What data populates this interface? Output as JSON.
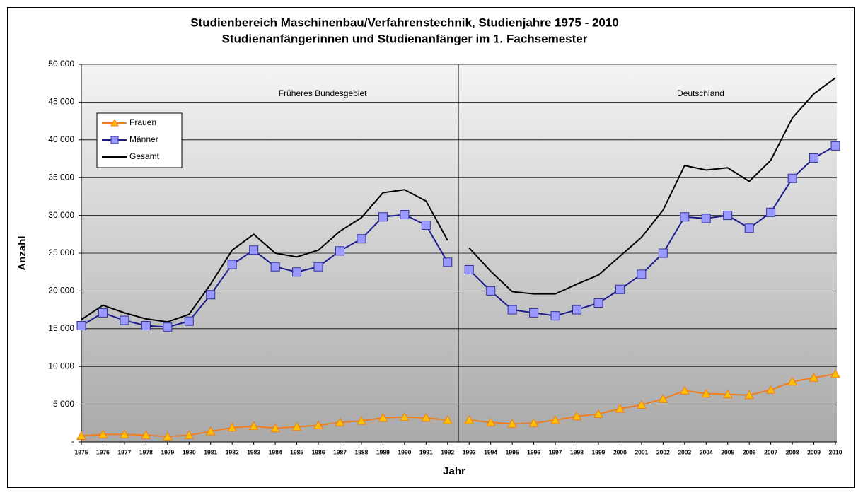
{
  "chart_data": {
    "type": "line",
    "title": "Studienbereich Maschinenbau/Verfahrenstechnik, Studienjahre 1975 - 2010",
    "subtitle": "Studienanfängerinnen  und Studienanfänger im 1. Fachsemester",
    "x_label": "Jahr",
    "y_label": "Anzahl",
    "categories": [
      "1975",
      "1976",
      "1977",
      "1978",
      "1979",
      "1980",
      "1981",
      "1982",
      "1983",
      "1984",
      "1985",
      "1986",
      "1987",
      "1988",
      "1989",
      "1990",
      "1991",
      "1992",
      "1993",
      "1994",
      "1995",
      "1996",
      "1997",
      "1998",
      "1999",
      "2000",
      "2001",
      "2002",
      "2003",
      "2004",
      "2005",
      "2006",
      "2007",
      "2008",
      "2009",
      "2010"
    ],
    "regions": [
      {
        "label": "Früheres Bundesgebiet",
        "range": [
          "1975",
          "1992"
        ]
      },
      {
        "label": "Deutschland",
        "range": [
          "1993",
          "2010"
        ]
      }
    ],
    "series": [
      {
        "name": "Frauen",
        "color": "#f07d1e",
        "marker": "triangle",
        "values": [
          800,
          1000,
          1000,
          900,
          700,
          900,
          1400,
          1900,
          2100,
          1800,
          2000,
          2200,
          2600,
          2800,
          3200,
          3300,
          3200,
          2900,
          2900,
          2600,
          2400,
          2500,
          2900,
          3400,
          3700,
          4400,
          4900,
          5700,
          6800,
          6400,
          6300,
          6200,
          6900,
          8000,
          8500,
          9000
        ]
      },
      {
        "name": "Männer",
        "color": "#1c1c8c",
        "marker": "square",
        "values": [
          15400,
          17100,
          16100,
          15400,
          15200,
          16000,
          19500,
          23500,
          25400,
          23200,
          22500,
          23200,
          25300,
          26900,
          29800,
          30100,
          28700,
          23800,
          22800,
          20000,
          17500,
          17100,
          16700,
          17500,
          18400,
          20200,
          22200,
          25000,
          29800,
          29600,
          30000,
          28300,
          30400,
          34900,
          37600,
          39200
        ]
      },
      {
        "name": "Gesamt",
        "color": "#000000",
        "marker": "none",
        "values": [
          16200,
          18100,
          17100,
          16300,
          15900,
          16900,
          20900,
          25400,
          27500,
          25000,
          24500,
          25400,
          27900,
          29700,
          33000,
          33400,
          31900,
          26700,
          25700,
          22600,
          19900,
          19600,
          19600,
          20900,
          22100,
          24600,
          27100,
          30700,
          36600,
          36000,
          36300,
          34500,
          37300,
          42900,
          46100,
          48200
        ]
      }
    ],
    "ylim": [
      0,
      50000
    ],
    "yticks": [
      {
        "value": 0,
        "label": "-"
      },
      {
        "value": 5000,
        "label": "5 000"
      },
      {
        "value": 10000,
        "label": "10 000"
      },
      {
        "value": 15000,
        "label": "15 000"
      },
      {
        "value": 20000,
        "label": "20 000"
      },
      {
        "value": 25000,
        "label": "25 000"
      },
      {
        "value": 30000,
        "label": "30 000"
      },
      {
        "value": 35000,
        "label": "35 000"
      },
      {
        "value": 40000,
        "label": "40 000"
      },
      {
        "value": 45000,
        "label": "45 000"
      },
      {
        "value": 50000,
        "label": "50 000"
      }
    ],
    "grid": true,
    "legend": "upper left"
  }
}
